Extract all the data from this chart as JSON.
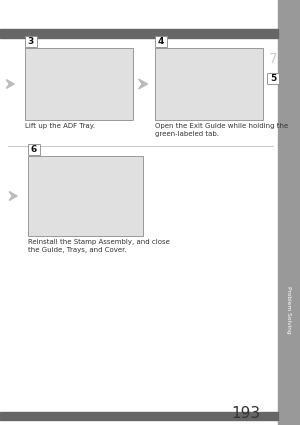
{
  "page_num": "193",
  "bg_color": "#ffffff",
  "sidebar_color": "#999999",
  "sidebar_text": "Problem Solving",
  "header_bar_color": "#666666",
  "footer_bar_color": "#666666",
  "step3_label": "3",
  "step4_label": "4",
  "step5_label": "5",
  "step6_label": "6",
  "step3_caption": "Lift up the ADF Tray.",
  "step4_caption": "Open the Exit Guide while holding the\ngreen-labeled tab.",
  "step6_caption": "Reinstall the Stamp Assembly, and close\nthe Guide, Trays, and Cover.",
  "label_bg": "#555555",
  "label_fg": "#ffffff",
  "label_border": "#888888",
  "divider_color": "#bbbbbb",
  "img_fill": "#e0e0e0",
  "img_border": "#999999",
  "arrow_fill": "#bbbbbb",
  "caption_color": "#333333",
  "caption_fontsize": 5.0,
  "step7_color": "#cccccc"
}
